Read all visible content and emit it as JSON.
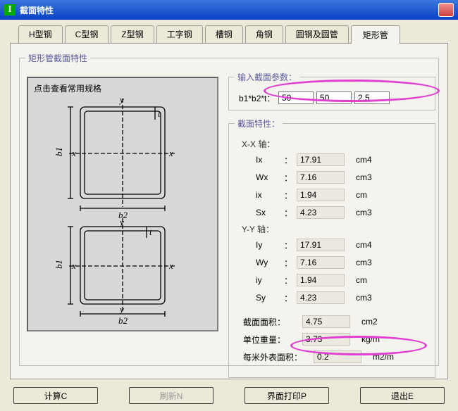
{
  "window": {
    "title": "截面特性",
    "icon_glyph": "I"
  },
  "tabs": [
    "H型钢",
    "C型钢",
    "Z型钢",
    "工字钢",
    "槽钢",
    "角钢",
    "圆钢及圆管",
    "矩形管"
  ],
  "active_tab": 7,
  "group_title": "矩形管截面特性",
  "diagram_hint": "点击查看常用规格",
  "params": {
    "legend": "输入截面参数：",
    "label": "b1*b2*t：",
    "b1": "50",
    "b2": "50",
    "t": "2.5"
  },
  "props": {
    "legend": "截面特性：",
    "axis_xx": "X-X 轴：",
    "axis_yy": "Y-Y 轴：",
    "rows_xx": [
      {
        "k": "Ix",
        "v": "17.91",
        "u": "cm4"
      },
      {
        "k": "Wx",
        "v": "7.16",
        "u": "cm3"
      },
      {
        "k": "ix",
        "v": "1.94",
        "u": "cm"
      },
      {
        "k": "Sx",
        "v": "4.23",
        "u": "cm3"
      }
    ],
    "rows_yy": [
      {
        "k": "Iy",
        "v": "17.91",
        "u": "cm4"
      },
      {
        "k": "Wy",
        "v": "7.16",
        "u": "cm3"
      },
      {
        "k": "iy",
        "v": "1.94",
        "u": "cm"
      },
      {
        "k": "Sy",
        "v": "4.23",
        "u": "cm3"
      }
    ],
    "area": {
      "k": "截面面积：",
      "v": "4.75",
      "u": "cm2"
    },
    "weight": {
      "k": "单位重量：",
      "v": "3.73",
      "u": "kg/m"
    },
    "surface": {
      "k": "每米外表面积：",
      "v": "0.2",
      "u": "m2/m"
    }
  },
  "buttons": {
    "calc": "计算C",
    "refresh": "刷新N",
    "print": "界面打印P",
    "exit": "退出E"
  },
  "diagram": {
    "labels": {
      "x": "x",
      "y": "y",
      "b1": "b1",
      "b2": "b2",
      "t": "t"
    },
    "stroke": "#000000"
  }
}
